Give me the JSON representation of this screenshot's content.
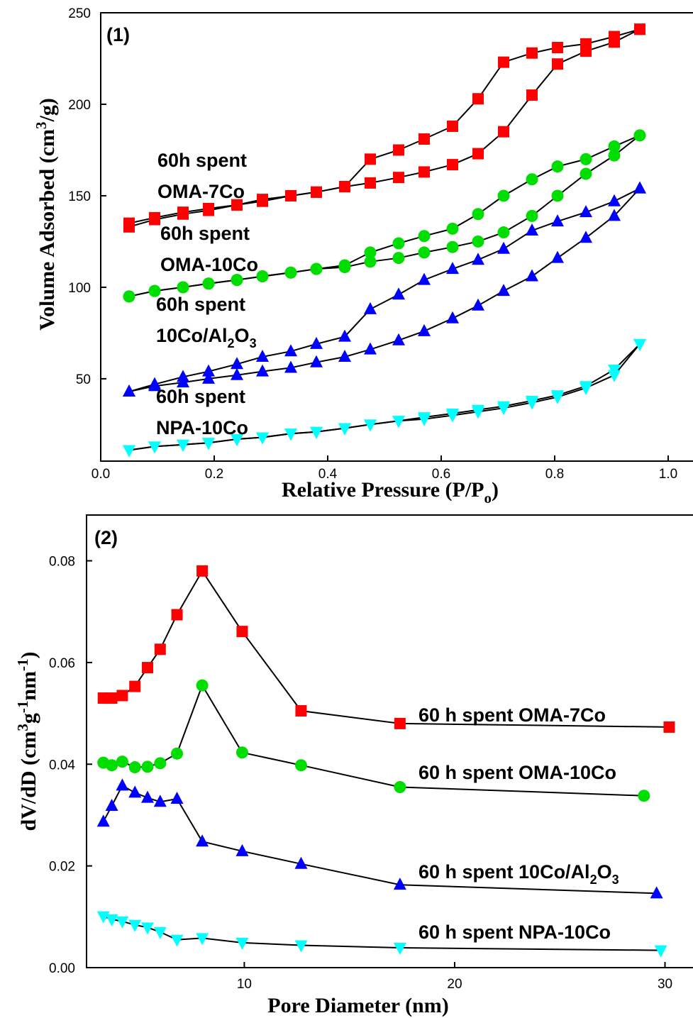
{
  "colors": {
    "red": "#ff0000",
    "green": "#00dd00",
    "blue": "#0000ff",
    "cyan": "#00ffff",
    "line": "#000000"
  },
  "chart_data": [
    {
      "panel": "(1)",
      "type": "line",
      "xlabel": "Relative Pressure (P/P",
      "xlabel_sub": "o",
      "xlabel_close": ")",
      "ylabel": "Volume Adsorbed (cm",
      "ylabel_sup": "3",
      "ylabel_close": "/g)",
      "xlim": [
        0.0,
        1.05
      ],
      "ylim": [
        5,
        250
      ],
      "xticks": [
        "0.0",
        "0.2",
        "0.4",
        "0.6",
        "0.8",
        "1.0"
      ],
      "xtick_values": [
        0,
        0.2,
        0.4,
        0.6,
        0.8,
        1.0
      ],
      "yticks": [
        "50",
        "100",
        "150",
        "200",
        "250"
      ],
      "ytick_values": [
        50,
        100,
        150,
        200,
        250
      ],
      "series": [
        {
          "color": "red",
          "marker": "square",
          "label_lines": [
            "60h spent",
            "OMA-7Co"
          ],
          "x": [
            0.05,
            0.095,
            0.145,
            0.19,
            0.24,
            0.285,
            0.335,
            0.38,
            0.43,
            0.475,
            0.525,
            0.57,
            0.62,
            0.665,
            0.71,
            0.76,
            0.805,
            0.855,
            0.905,
            0.95
          ],
          "adsorption": [
            133,
            137,
            140,
            142,
            145,
            147,
            150,
            152,
            155,
            157,
            160,
            163,
            167,
            173,
            185,
            205,
            222,
            229,
            234,
            241
          ],
          "desorption": [
            135,
            138,
            141,
            143,
            145,
            148,
            150,
            152,
            155,
            170,
            175,
            181,
            188,
            203,
            223,
            228,
            231,
            233,
            237,
            241
          ]
        },
        {
          "color": "green",
          "marker": "circle",
          "label_lines": [
            "60h spent",
            "OMA-10Co"
          ],
          "x": [
            0.05,
            0.095,
            0.145,
            0.19,
            0.24,
            0.285,
            0.335,
            0.38,
            0.43,
            0.475,
            0.525,
            0.57,
            0.62,
            0.665,
            0.71,
            0.76,
            0.805,
            0.855,
            0.905,
            0.95
          ],
          "adsorption": [
            95,
            98,
            100,
            102,
            104,
            106,
            108,
            110,
            111,
            114,
            116,
            119,
            122,
            125,
            130,
            139,
            150,
            162,
            172,
            183
          ],
          "desorption": [
            95,
            98,
            100,
            102,
            104,
            106,
            108,
            110,
            112,
            119,
            124,
            128,
            132,
            140,
            150,
            159,
            166,
            170,
            177,
            183
          ]
        },
        {
          "color": "blue",
          "marker": "triangle-up",
          "label_lines": [
            "60h spent",
            "10Co/Al",
            "2",
            "O",
            "3"
          ],
          "x": [
            0.05,
            0.095,
            0.145,
            0.19,
            0.24,
            0.285,
            0.335,
            0.38,
            0.43,
            0.475,
            0.525,
            0.57,
            0.62,
            0.665,
            0.71,
            0.76,
            0.805,
            0.855,
            0.905,
            0.95
          ],
          "adsorption": [
            43,
            46,
            48,
            50,
            52,
            54,
            56,
            59,
            62,
            66,
            71,
            76,
            83,
            90,
            98,
            106,
            116,
            127,
            139,
            154
          ],
          "desorption": [
            43,
            47,
            51,
            54,
            58,
            62,
            65,
            69,
            73,
            88,
            96,
            104,
            110,
            115,
            121,
            131,
            136,
            141,
            147,
            154
          ]
        },
        {
          "color": "cyan",
          "marker": "triangle-down",
          "label_lines": [
            "60h spent",
            "NPA-10Co"
          ],
          "x": [
            0.05,
            0.095,
            0.145,
            0.19,
            0.24,
            0.285,
            0.335,
            0.38,
            0.43,
            0.475,
            0.525,
            0.57,
            0.62,
            0.665,
            0.71,
            0.76,
            0.805,
            0.855,
            0.905,
            0.95
          ],
          "adsorption": [
            11,
            13,
            14,
            15,
            17,
            18,
            20,
            21,
            23,
            25,
            27,
            28,
            30,
            32,
            34,
            37,
            40,
            45,
            52,
            69
          ],
          "desorption": [
            11,
            13,
            14,
            15,
            17,
            18,
            20,
            21,
            23,
            25,
            27,
            29,
            31,
            33,
            35,
            38,
            41,
            46,
            55,
            69
          ]
        }
      ]
    },
    {
      "panel": "(2)",
      "type": "line",
      "xlabel": "Pore Diameter (nm)",
      "ylabel": "dV/dD (cm",
      "ylabel_sup": "3",
      "ylabel_mid": "g",
      "ylabel_sup2": "-1",
      "ylabel_mid2": "nm",
      "ylabel_sup3": "-1",
      "ylabel_close": ")",
      "xlim": [
        2.5,
        31.5
      ],
      "ylim": [
        0.0,
        0.089
      ],
      "xticks": [
        "10",
        "20",
        "30"
      ],
      "xtick_values": [
        10,
        20,
        30
      ],
      "yticks": [
        "0.00",
        "0.02",
        "0.04",
        "0.06",
        "0.08"
      ],
      "ytick_values": [
        0.0,
        0.02,
        0.04,
        0.06,
        0.08
      ],
      "series": [
        {
          "color": "red",
          "marker": "square",
          "label_parts": [
            "60 h spent OMA-7Co"
          ],
          "x": [
            3.3,
            3.7,
            4.2,
            4.8,
            5.4,
            6.0,
            6.8,
            8.0,
            9.9,
            12.7,
            17.4,
            30.2
          ],
          "y": [
            0.053,
            0.053,
            0.0535,
            0.0553,
            0.059,
            0.0626,
            0.0694,
            0.078,
            0.0661,
            0.0505,
            0.048,
            0.0473
          ]
        },
        {
          "color": "green",
          "marker": "circle",
          "label_parts": [
            "60 h spent OMA-10Co"
          ],
          "x": [
            3.3,
            3.7,
            4.2,
            4.8,
            5.4,
            6.0,
            6.8,
            8.0,
            9.9,
            12.7,
            17.4,
            29.0
          ],
          "y": [
            0.0403,
            0.0398,
            0.0405,
            0.0394,
            0.0395,
            0.0402,
            0.0421,
            0.0555,
            0.0423,
            0.0398,
            0.0355,
            0.0338
          ]
        },
        {
          "color": "blue",
          "marker": "triangle-up",
          "label_parts": [
            "60 h spent 10Co/Al",
            "2",
            "O",
            "3"
          ],
          "x": [
            3.3,
            3.7,
            4.2,
            4.8,
            5.4,
            6.0,
            6.8,
            8.0,
            9.9,
            12.7,
            17.4,
            29.6
          ],
          "y": [
            0.0287,
            0.0318,
            0.0358,
            0.0344,
            0.0334,
            0.0326,
            0.0332,
            0.0248,
            0.0229,
            0.0204,
            0.0163,
            0.0146
          ]
        },
        {
          "color": "cyan",
          "marker": "triangle-down",
          "label_parts": [
            "60 h spent NPA-10Co"
          ],
          "x": [
            3.3,
            3.7,
            4.2,
            4.8,
            5.4,
            6.0,
            6.8,
            8.0,
            9.9,
            12.7,
            17.4,
            29.8
          ],
          "y": [
            0.0101,
            0.0095,
            0.0091,
            0.0084,
            0.0079,
            0.007,
            0.0055,
            0.0058,
            0.0049,
            0.0044,
            0.0039,
            0.0034
          ]
        }
      ]
    }
  ]
}
